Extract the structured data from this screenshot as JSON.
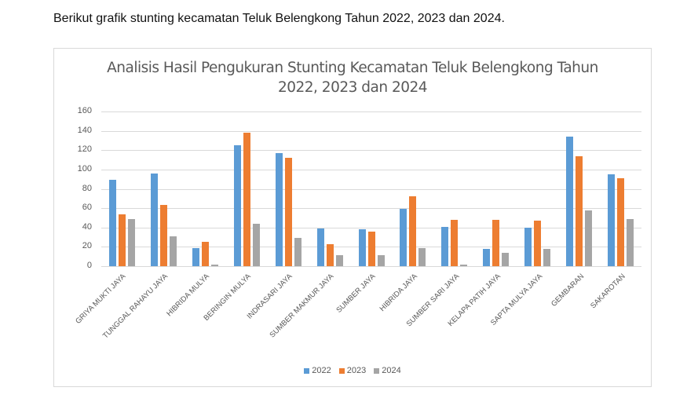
{
  "intro_text": "Berikut grafik stunting kecamatan Teluk Belengkong Tahun 2022, 2023 dan 2024.",
  "chart_data": {
    "type": "bar",
    "title": "Analisis Hasil Pengukuran Stunting Kecamatan Teluk Belengkong Tahun 2022, 2023 dan 2024",
    "title_lines": [
      "Analisis Hasil Pengukuran Stunting Kecamatan Teluk Belengkong Tahun",
      "2022, 2023 dan 2024"
    ],
    "xlabel": "",
    "ylabel": "",
    "ylim": [
      0,
      160
    ],
    "yticks": [
      0,
      20,
      40,
      60,
      80,
      100,
      120,
      140,
      160
    ],
    "grid": true,
    "legend_position": "bottom",
    "categories": [
      "GRIYA MUKTI JAYA",
      "TUNGGAL RAHAYU JAYA",
      "HIBRIDA MULYA",
      "BERINGIN MULYA",
      "INDRASARI JAYA",
      "SUMBER MAKMUR JAYA",
      "SUMBER JAYA",
      "HIBRIDA JAYA",
      "SUMBER SARI JAYA",
      "KELAPA PATIH JAYA",
      "SAPTA MULYA JAYA",
      "GEMBARAN",
      "SAKAROTAN"
    ],
    "series": [
      {
        "name": "2022",
        "color": "#5B9BD5",
        "values": [
          89,
          96,
          19,
          125,
          117,
          39,
          38,
          59,
          41,
          18,
          40,
          134,
          95
        ]
      },
      {
        "name": "2023",
        "color": "#ED7D31",
        "values": [
          54,
          63,
          25,
          138,
          112,
          23,
          36,
          72,
          48,
          48,
          47,
          114,
          91
        ]
      },
      {
        "name": "2024",
        "color": "#A5A5A5",
        "values": [
          49,
          31,
          2,
          44,
          29,
          11,
          11,
          19,
          2,
          14,
          18,
          58,
          49
        ]
      }
    ]
  }
}
